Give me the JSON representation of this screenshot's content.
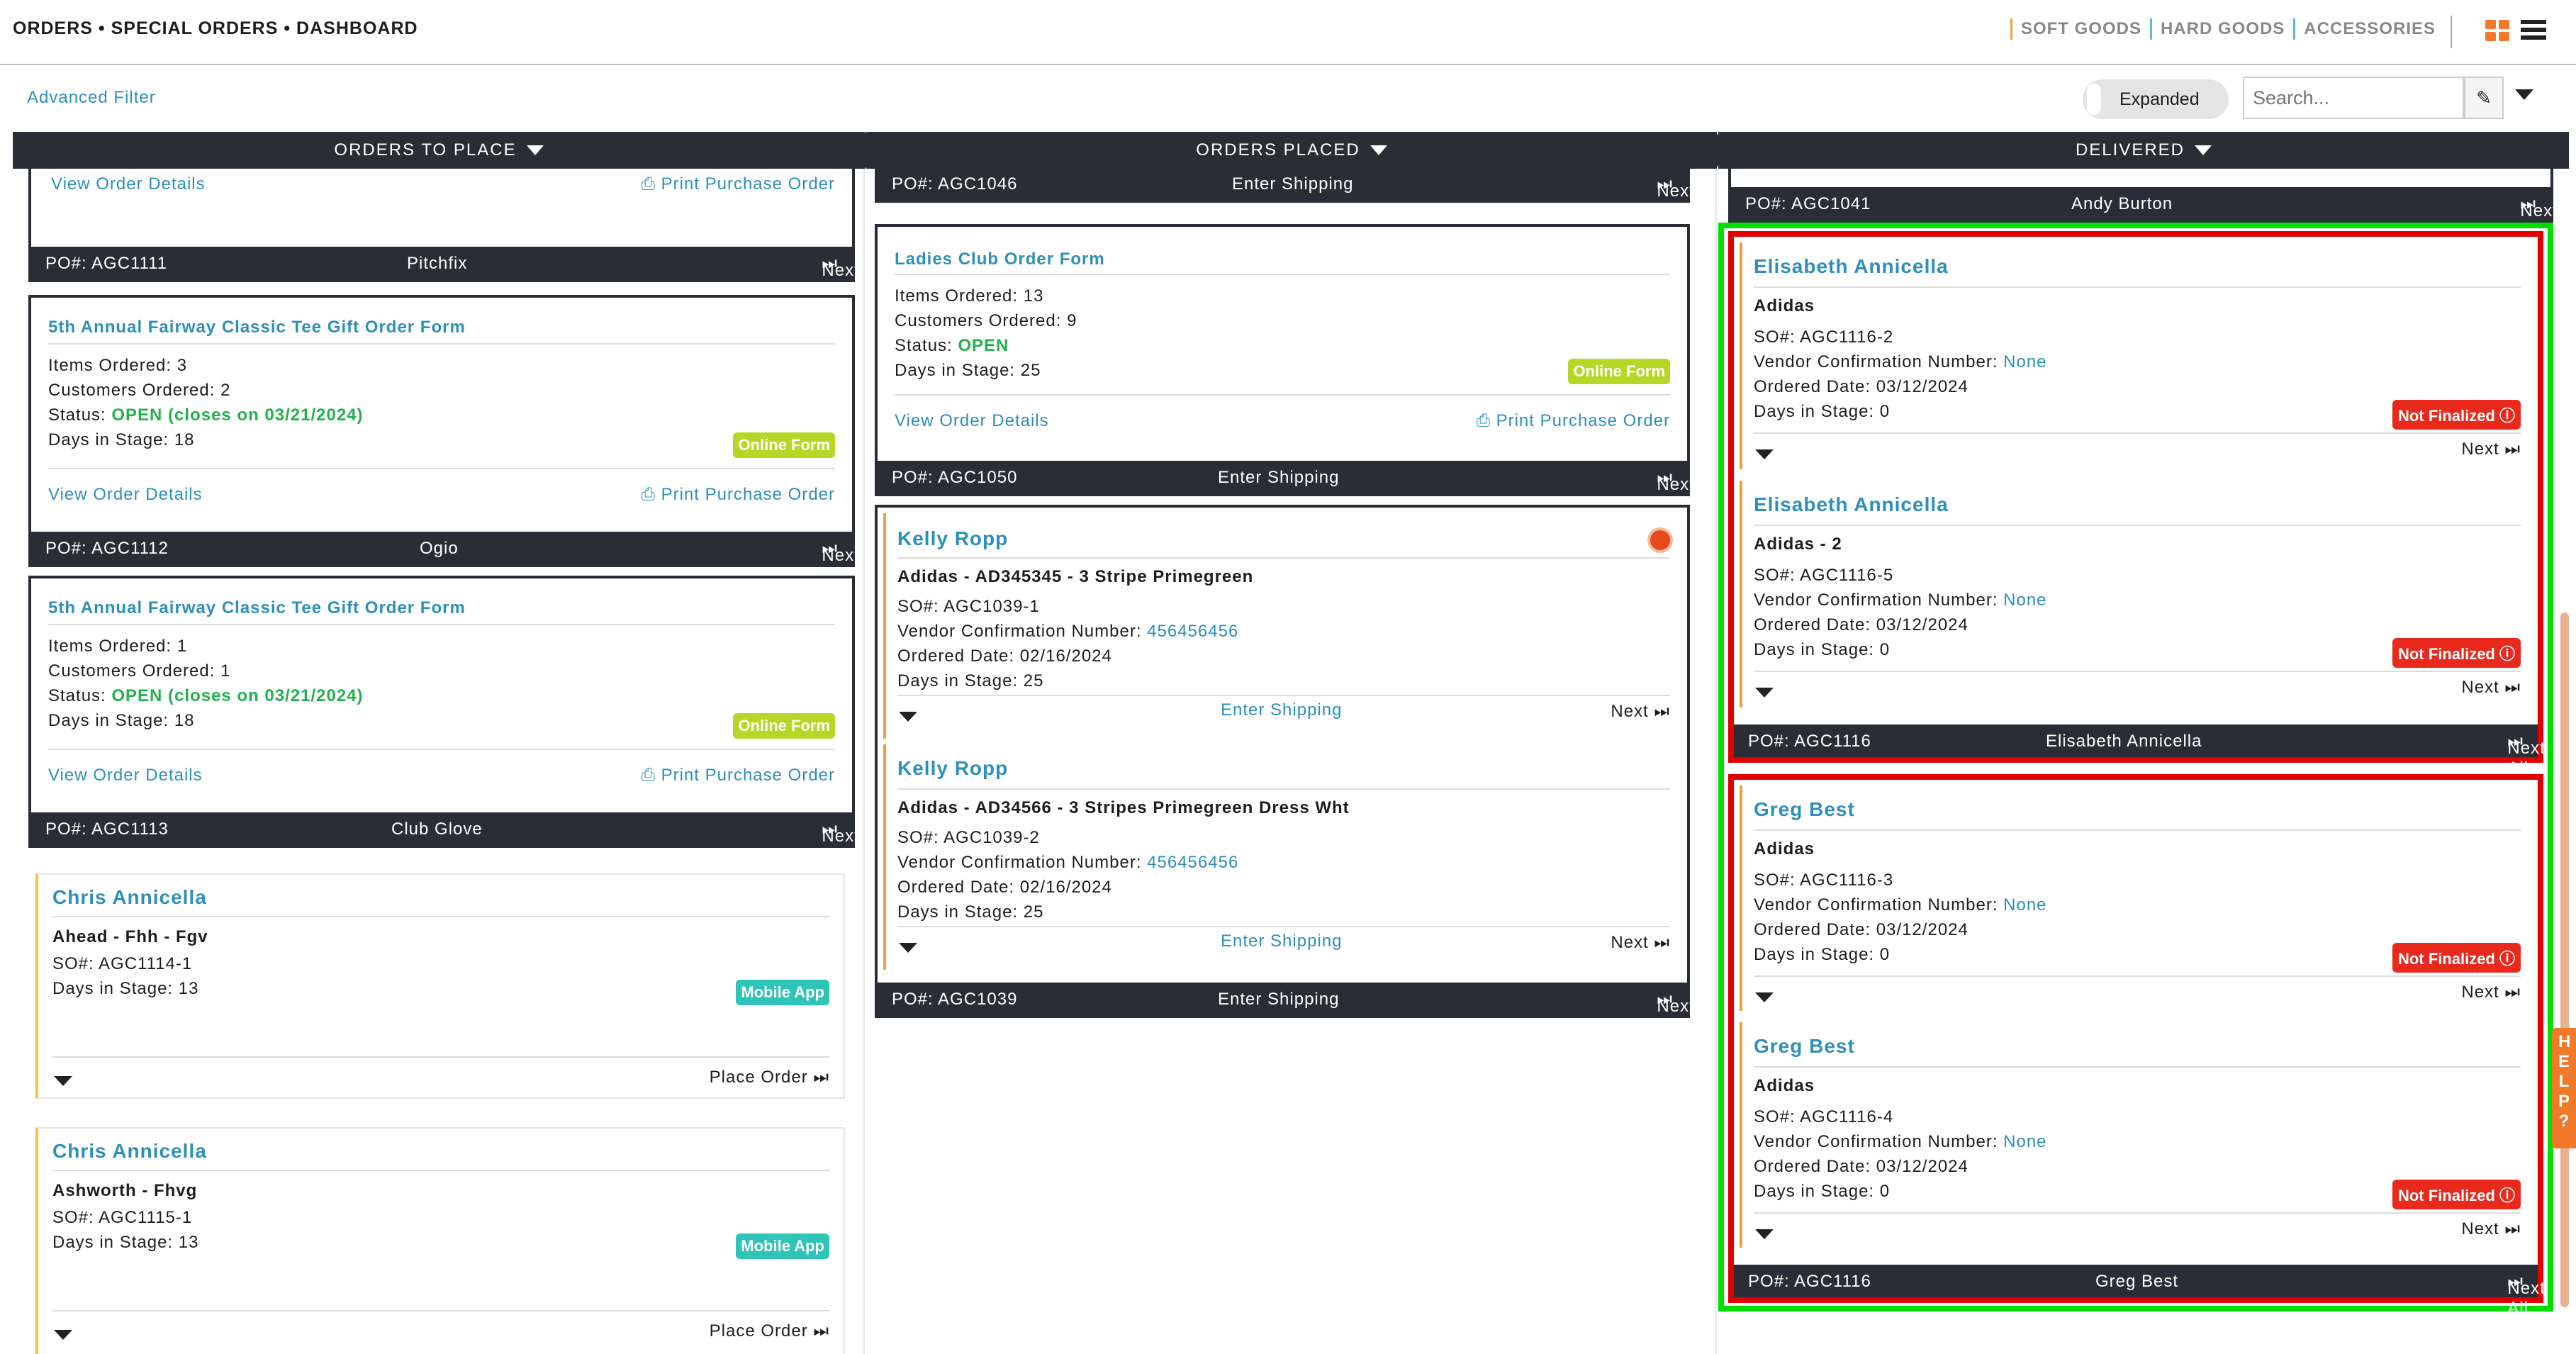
{
  "breadcrumb": "ORDERS • SPECIAL ORDERS • DASHBOARD",
  "categories": [
    "SOFT GOODS",
    "HARD GOODS",
    "ACCESSORIES"
  ],
  "advanced_filter": "Advanced Filter",
  "toggle_label": "Expanded",
  "search_placeholder": "Search...",
  "columns": [
    "ORDERS TO PLACE",
    "ORDERS PLACED",
    "DELIVERED"
  ],
  "common": {
    "view_details": "View Order Details",
    "print_po": "Print Purchase Order",
    "next_all": "Next All",
    "next": "Next",
    "enter_shipping": "Enter Shipping",
    "place_order": "Place Order",
    "online_form": "Online Form",
    "mobile_app": "Mobile App",
    "not_finalized": "Not Finalized",
    "help": "HELP"
  },
  "col1": {
    "top_po": "PO#: AGC1111",
    "top_vendor": "Pitchfix",
    "forms": [
      {
        "title": "5th Annual Fairway Classic Tee Gift Order Form",
        "items": "Items Ordered: 3",
        "customers": "Customers Ordered: 2",
        "status_label": "Status: ",
        "status": "OPEN (closes on 03/21/2024)",
        "days": "Days in Stage: 18",
        "po": "PO#: AGC1112",
        "vendor": "Ogio"
      },
      {
        "title": "5th Annual Fairway Classic Tee Gift Order Form",
        "items": "Items Ordered: 1",
        "customers": "Customers Ordered: 1",
        "status_label": "Status: ",
        "status": "OPEN (closes on 03/21/2024)",
        "days": "Days in Stage: 18",
        "po": "PO#: AGC1113",
        "vendor": "Club Glove"
      }
    ],
    "customers": [
      {
        "name": "Chris Annicella",
        "product": "Ahead - Fhh - Fgv",
        "so": "SO#: AGC1114-1",
        "days": "Days in Stage: 13"
      },
      {
        "name": "Chris Annicella",
        "product": "Ashworth - Fhvg",
        "so": "SO#: AGC1115-1",
        "days": "Days in Stage: 13"
      }
    ]
  },
  "col2": {
    "top_po": "PO#: AGC1046",
    "form": {
      "title": "Ladies Club Order Form",
      "items": "Items Ordered: 13",
      "customers": "Customers Ordered: 9",
      "status_label": "Status: ",
      "status": "OPEN",
      "days": "Days in Stage: 25",
      "po": "PO#: AGC1050"
    },
    "orders": [
      {
        "name": "Kelly Ropp",
        "product": "Adidas - AD345345 - 3 Stripe Primegreen",
        "so": "SO#: AGC1039-1",
        "vcn_label": "Vendor Confirmation Number: ",
        "vcn": "456456456",
        "date": "Ordered Date: 02/16/2024",
        "days": "Days in Stage: 25"
      },
      {
        "name": "Kelly Ropp",
        "product": "Adidas - AD34566 - 3 Stripes Primegreen Dress Wht",
        "so": "SO#: AGC1039-2",
        "vcn_label": "Vendor Confirmation Number: ",
        "vcn": "456456456",
        "date": "Ordered Date: 02/16/2024",
        "days": "Days in Stage: 25"
      }
    ],
    "po": "PO#: AGC1039"
  },
  "col3": {
    "top_po": "PO#: AGC1041",
    "top_name": "Andy Burton",
    "groups": [
      {
        "po": "PO#: AGC1116",
        "name": "Elisabeth Annicella",
        "items": [
          {
            "name": "Elisabeth Annicella",
            "product": "Adidas",
            "so": "SO#: AGC1116-2",
            "vcn_label": "Vendor Confirmation Number: ",
            "vcn": "None",
            "date": "Ordered Date: 03/12/2024",
            "days": "Days in Stage: 0"
          },
          {
            "name": "Elisabeth Annicella",
            "product": "Adidas - 2",
            "so": "SO#: AGC1116-5",
            "vcn_label": "Vendor Confirmation Number: ",
            "vcn": "None",
            "date": "Ordered Date: 03/12/2024",
            "days": "Days in Stage: 0"
          }
        ]
      },
      {
        "po": "PO#: AGC1116",
        "name": "Greg Best",
        "items": [
          {
            "name": "Greg Best",
            "product": "Adidas",
            "so": "SO#: AGC1116-3",
            "vcn_label": "Vendor Confirmation Number: ",
            "vcn": "None",
            "date": "Ordered Date: 03/12/2024",
            "days": "Days in Stage: 0"
          },
          {
            "name": "Greg Best",
            "product": "Adidas",
            "so": "SO#: AGC1116-4",
            "vcn_label": "Vendor Confirmation Number: ",
            "vcn": "None",
            "date": "Ordered Date: 03/12/2024",
            "days": "Days in Stage: 0"
          }
        ]
      }
    ]
  },
  "colors": {
    "accent": "#2e8fb8",
    "dark": "#2b2d36",
    "orange": "#f07a2a",
    "highlight_green": "#00e000",
    "highlight_red": "#e00000"
  }
}
